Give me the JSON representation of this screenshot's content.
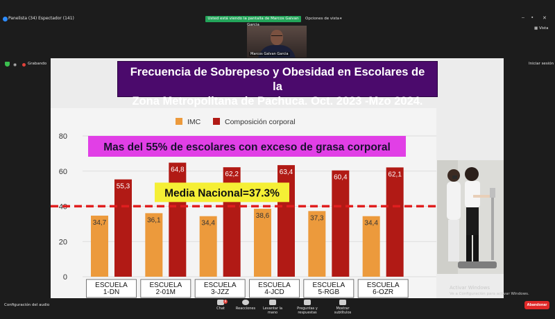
{
  "topbar": {
    "meeting_title": "Panelista (34) Espectador (141)",
    "share_banner": "Usted está viendo la pantalla de Marcos Galvan Garcia",
    "view_options": "Opciones de vista",
    "view_label": "Vista"
  },
  "presenter": {
    "name": "Marcos Galvan Garcia"
  },
  "recording": {
    "label": "Grabando"
  },
  "session": {
    "end_label": "Iniciar sesión"
  },
  "slide": {
    "title_line1": "Frecuencia de Sobrepeso y Obesidad en Escolares de la",
    "title_line2": "Zona Metropolitana de Pachuca. Oct. 2023 -Mzo 2024.",
    "highlight": "Mas del 55% de escolares con exceso de grasa corporal",
    "media_label": "Media Nacional=37.3%"
  },
  "chart_data": {
    "type": "bar",
    "categories": [
      "ESCUELA\n1-DN",
      "ESCUELA\n2-01M",
      "ESCUELA\n3-JZZ",
      "ESCUELA\n4-JCD",
      "ESCUELA\n5-RGB",
      "ESCUELA\n6-OZR"
    ],
    "series": [
      {
        "name": "IMC",
        "values": [
          34.7,
          36.1,
          34.4,
          38.6,
          37.3,
          34.4
        ],
        "labels": [
          "34,7",
          "36,1",
          "34,4",
          "38,6",
          "37,3",
          "34,4"
        ],
        "color": "#ec9a3c"
      },
      {
        "name": "Composición corporal",
        "values": [
          55.3,
          64.8,
          62.2,
          63.4,
          60.4,
          62.1
        ],
        "labels": [
          "55,3",
          "64,8",
          "62,2",
          "63,4",
          "60,4",
          "62,1"
        ],
        "color": "#b11a15"
      }
    ],
    "reference_line": {
      "value": 37.3,
      "color": "#e01e1e"
    },
    "yticks": [
      0,
      20,
      40,
      60,
      80
    ],
    "ylim": [
      0,
      80
    ],
    "legend_position": "top",
    "grid": true
  },
  "watermark": {
    "line1": "Activar Windows",
    "line2": "Ve a Configuración para activar Windows."
  },
  "bottombar": {
    "audio_config": "Configuración del audio",
    "chat": "Chat",
    "chat_badge": "9",
    "reactions": "Reacciones",
    "raise_hand": "Levantar la mano",
    "qa": "Preguntas y respuestas",
    "subtitles": "Mostrar subtítulos",
    "leave": "Abandonar"
  }
}
